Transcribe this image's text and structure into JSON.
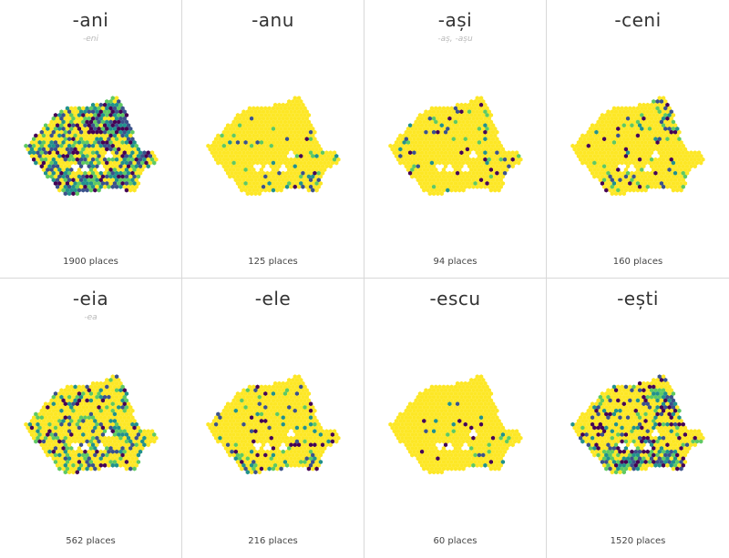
{
  "palette": {
    "base": "#fde725",
    "low": "#5ec962",
    "mid": "#21918c",
    "high": "#3b528b",
    "top": "#440154",
    "gap": "#ffffff",
    "divider": "#d8d8d8"
  },
  "panels": [
    {
      "suffix": "-ani",
      "variant": "-eni",
      "count_label": "1900 places",
      "count": 1900,
      "pattern": "dense-north-east"
    },
    {
      "suffix": "-anu",
      "variant": "",
      "count_label": "125 places",
      "count": 125,
      "pattern": "south-east"
    },
    {
      "suffix": "-ași",
      "variant": "-aș, -așu",
      "count_label": "94 places",
      "count": 94,
      "pattern": "scattered"
    },
    {
      "suffix": "-ceni",
      "variant": "",
      "count_label": "160 places",
      "count": 160,
      "pattern": "north-east"
    },
    {
      "suffix": "-eia",
      "variant": "-ea",
      "count_label": "562 places",
      "count": 562,
      "pattern": "widespread"
    },
    {
      "suffix": "-ele",
      "variant": "",
      "count_label": "216 places",
      "count": 216,
      "pattern": "south"
    },
    {
      "suffix": "-escu",
      "variant": "",
      "count_label": "60 places",
      "count": 60,
      "pattern": "sparse-south-east"
    },
    {
      "suffix": "-ești",
      "variant": "",
      "count_label": "1520 places",
      "count": 1520,
      "pattern": "dense-south-east"
    }
  ]
}
